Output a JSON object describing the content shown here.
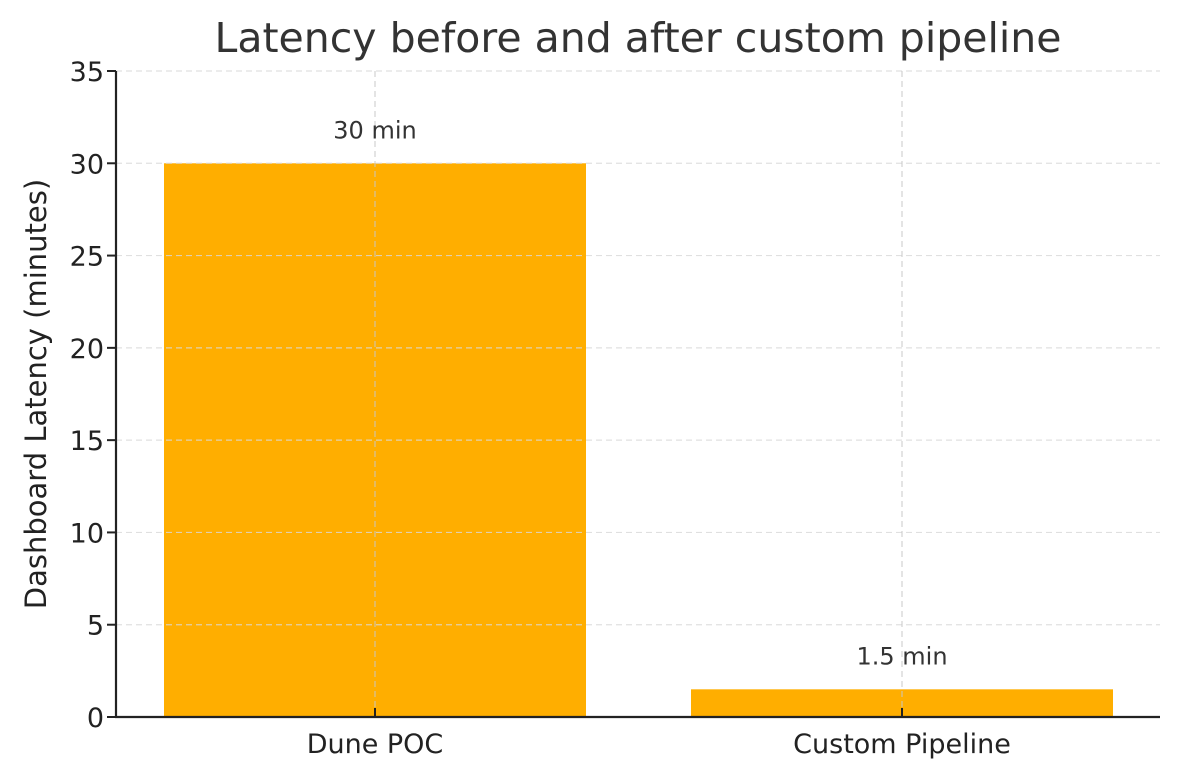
{
  "chart_data": {
    "type": "bar",
    "title": "Latency before and after custom pipeline",
    "xlabel": "",
    "ylabel": "Dashboard Latency (minutes)",
    "categories": [
      "Dune POC",
      "Custom Pipeline"
    ],
    "values": [
      30,
      1.5
    ],
    "bar_labels": [
      "30 min",
      "1.5 min"
    ],
    "ylim": [
      0,
      35
    ],
    "yticks": [
      "0",
      "5",
      "10",
      "15",
      "20",
      "25",
      "30",
      "35"
    ],
    "grid": true,
    "legend": null,
    "bar_color": "#FFAE00"
  }
}
